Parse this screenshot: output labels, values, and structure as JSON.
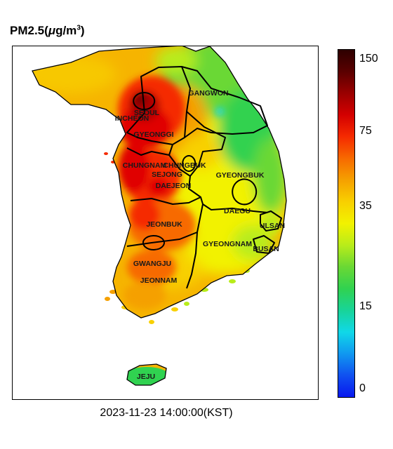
{
  "title": {
    "pollutant": "PM2.5",
    "unit_open": "(",
    "unit_mu": "μ",
    "unit_g": "g/m",
    "unit_exp": "3",
    "unit_close": ")"
  },
  "timestamp": "2023-11-23 14:00:00(KST)",
  "regions": [
    {
      "id": "gangwon",
      "name": "GANGWON"
    },
    {
      "id": "seoul",
      "name": "SEOUL"
    },
    {
      "id": "incheon",
      "name": "INCHEON"
    },
    {
      "id": "gyeonggi",
      "name": "GYEONGGI"
    },
    {
      "id": "chungnam",
      "name": "CHUNGNAM"
    },
    {
      "id": "chungbuk",
      "name": "CHUNGBUK"
    },
    {
      "id": "sejong",
      "name": "SEJONG"
    },
    {
      "id": "daejeon",
      "name": "DAEJEON"
    },
    {
      "id": "gyeongbuk",
      "name": "GYEONGBUK"
    },
    {
      "id": "daegu",
      "name": "DAEGU"
    },
    {
      "id": "ulsan",
      "name": "ULSAN"
    },
    {
      "id": "jeonbuk",
      "name": "JEONBUK"
    },
    {
      "id": "gyeongnam",
      "name": "GYEONGNAM"
    },
    {
      "id": "busan",
      "name": "BUSAN"
    },
    {
      "id": "gwangju",
      "name": "GWANGJU"
    },
    {
      "id": "jeonnam",
      "name": "JEONNAM"
    },
    {
      "id": "jeju",
      "name": "JEJU"
    }
  ],
  "colorbar": {
    "ticks": [
      "150",
      "75",
      "35",
      "15",
      "0"
    ],
    "colors": [
      "#2d0000",
      "#5a0000",
      "#9a0000",
      "#d40000",
      "#f52a00",
      "#f76a00",
      "#f5a000",
      "#f8d000",
      "#f2f200",
      "#b8ec1a",
      "#6ad834",
      "#30d250",
      "#18d498",
      "#10d8e8",
      "#1098f0",
      "#1050f0",
      "#0818ee"
    ]
  },
  "colors": {
    "low": "#0818ee",
    "moderate": "#f2f200",
    "high": "#f52a00",
    "very_high": "#2d0000"
  }
}
